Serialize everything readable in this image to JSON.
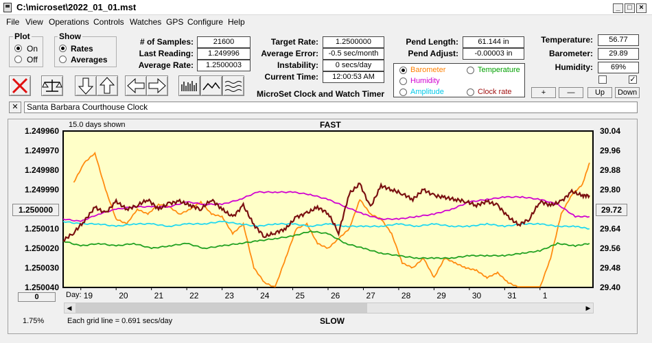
{
  "window": {
    "title": "C:\\microset\\2022_01_01.mst"
  },
  "menu": [
    "File",
    "View",
    "Operations",
    "Controls",
    "Watches",
    "GPS",
    "Configure",
    "Help"
  ],
  "plot_group": {
    "label": "Plot",
    "on": "On",
    "off": "Off",
    "selected": "On"
  },
  "show_group": {
    "label": "Show",
    "rates": "Rates",
    "averages": "Averages",
    "selected": "Rates"
  },
  "stats": {
    "samples_label": "# of Samples:",
    "samples": "21600",
    "last_reading_label": "Last Reading:",
    "last_reading": "1.249996",
    "average_rate_label": "Average Rate:",
    "average_rate": "1.2500003",
    "target_rate_label": "Target Rate:",
    "target_rate": "1.2500000",
    "average_error_label": "Average Error:",
    "average_error": "-0.5 sec/month",
    "instability_label": "Instability:",
    "instability": "0 secs/day",
    "current_time_label": "Current Time:",
    "current_time": "12:00:53 AM",
    "pend_length_label": "Pend Length:",
    "pend_length": "61.144 in",
    "pend_adjust_label": "Pend Adjust:",
    "pend_adjust": "-0.00003 in",
    "temperature_label": "Temperature:",
    "temperature": "56.77",
    "barometer_label": "Barometer:",
    "barometer": "29.89",
    "humidity_label": "Humidity:",
    "humidity": "69%"
  },
  "app_caption": "MicroSet Clock and Watch Timer",
  "aux_options": [
    {
      "label": "Barometer",
      "color": "#ff8000",
      "selected": true
    },
    {
      "label": "Temperature",
      "color": "#00a000",
      "selected": false
    },
    {
      "label": "Humidity",
      "color": "#d000d0",
      "selected": false
    },
    {
      "label": "Clock rate",
      "color": "#a01010",
      "selected": false
    },
    {
      "label": "Amplitude",
      "color": "#00c8e8",
      "selected": false
    }
  ],
  "scale_buttons": [
    "+",
    "—",
    "Up",
    "Down"
  ],
  "checkbox_right": "✓",
  "description": "Santa Barbara Courthouse Clock",
  "close_x": "✕",
  "chart_data": {
    "type": "line",
    "days_shown": "15.0 days shown",
    "top_label": "FAST",
    "bottom_label": "SLOW",
    "grid_note": "Each grid line = 0.691 secs/day",
    "zoom_pct": "1.75%",
    "left_ticks": [
      "1.249960",
      "1.249970",
      "1.249980",
      "1.249990",
      "1.250000",
      "1.250010",
      "1.250020",
      "1.250030",
      "1.250040"
    ],
    "right_ticks": [
      "30.04",
      "29.96",
      "29.88",
      "29.80",
      "29.72",
      "29.64",
      "29.56",
      "29.48",
      "29.40"
    ],
    "left_button": "1.250000",
    "right_button": "29.72",
    "bottom_left_button": "0",
    "x_prefix": "Day:",
    "x_ticks": [
      "19",
      "20",
      "21",
      "22",
      "23",
      "24",
      "25",
      "26",
      "27",
      "28",
      "29",
      "30",
      "31",
      "1"
    ],
    "y_range_left": [
      1.24996,
      1.25004
    ],
    "y_range_right": [
      29.4,
      30.04
    ],
    "series": [
      {
        "name": "Barometer",
        "color": "#ff8c10",
        "axis": "right",
        "x": [
          18.3,
          18.6,
          18.9,
          19.2,
          19.5,
          19.8,
          20.1,
          20.4,
          20.7,
          21.0,
          21.3,
          21.6,
          21.9,
          22.2,
          22.5,
          22.8,
          23.1,
          23.4,
          23.7,
          24.0,
          24.3,
          24.6,
          24.9,
          25.2,
          25.5,
          25.8,
          26.1,
          26.4,
          26.7,
          27.0,
          27.3,
          27.6,
          27.9,
          28.2,
          28.5,
          28.8,
          29.1,
          29.4,
          29.7,
          30.0,
          30.3,
          30.6,
          30.9,
          31.2,
          31.5,
          31.8,
          32.1,
          32.4,
          32.7,
          32.9
        ],
        "y": [
          29.83,
          29.91,
          29.95,
          29.8,
          29.68,
          29.66,
          29.72,
          29.7,
          29.74,
          29.73,
          29.7,
          29.72,
          29.75,
          29.7,
          29.69,
          29.62,
          29.66,
          29.48,
          29.42,
          29.4,
          29.52,
          29.64,
          29.66,
          29.58,
          29.56,
          29.6,
          29.64,
          29.76,
          29.7,
          29.68,
          29.62,
          29.5,
          29.48,
          29.52,
          29.44,
          29.52,
          29.5,
          29.48,
          29.47,
          29.44,
          29.46,
          29.42,
          29.4,
          29.38,
          29.4,
          29.52,
          29.7,
          29.78,
          29.82,
          29.91
        ]
      },
      {
        "name": "Humidity",
        "color": "#d000d0",
        "axis": "right",
        "x": [
          18.0,
          18.5,
          19.0,
          19.5,
          20.0,
          20.5,
          21.0,
          21.5,
          22.0,
          22.5,
          23.0,
          23.5,
          24.0,
          24.5,
          25.0,
          25.5,
          26.0,
          26.5,
          27.0,
          27.5,
          28.0,
          28.5,
          29.0,
          29.5,
          30.0,
          30.5,
          31.0,
          31.5,
          32.0,
          32.5,
          32.9
        ],
        "y": [
          29.68,
          29.67,
          29.7,
          29.72,
          29.73,
          29.73,
          29.73,
          29.75,
          29.74,
          29.74,
          29.76,
          29.79,
          29.79,
          29.79,
          29.78,
          29.76,
          29.73,
          29.7,
          29.68,
          29.68,
          29.69,
          29.7,
          29.72,
          29.75,
          29.76,
          29.77,
          29.77,
          29.76,
          29.74,
          29.69,
          29.69
        ]
      },
      {
        "name": "Amplitude",
        "color": "#20d8f0",
        "axis": "right",
        "x": [
          18.0,
          18.5,
          19.0,
          19.5,
          20.0,
          20.5,
          21.0,
          21.5,
          22.0,
          22.5,
          23.0,
          23.5,
          24.0,
          24.5,
          25.0,
          25.5,
          26.0,
          26.5,
          27.0,
          27.5,
          28.0,
          28.5,
          29.0,
          29.5,
          30.0,
          30.5,
          31.0,
          31.5,
          32.0,
          32.5,
          32.9
        ],
        "y": [
          29.67,
          29.66,
          29.66,
          29.65,
          29.66,
          29.66,
          29.65,
          29.66,
          29.66,
          29.67,
          29.66,
          29.65,
          29.66,
          29.66,
          29.65,
          29.66,
          29.65,
          29.65,
          29.65,
          29.66,
          29.65,
          29.66,
          29.65,
          29.65,
          29.66,
          29.65,
          29.66,
          29.66,
          29.65,
          29.65,
          29.64
        ]
      },
      {
        "name": "Temperature",
        "color": "#20a020",
        "axis": "right",
        "x": [
          18.0,
          18.5,
          19.0,
          19.5,
          20.0,
          20.5,
          21.0,
          21.5,
          22.0,
          22.5,
          23.0,
          23.5,
          24.0,
          24.5,
          25.0,
          25.5,
          26.0,
          26.5,
          27.0,
          27.5,
          28.0,
          28.5,
          29.0,
          29.5,
          30.0,
          30.5,
          31.0,
          31.5,
          32.0,
          32.5,
          32.9
        ],
        "y": [
          29.59,
          29.57,
          29.58,
          29.57,
          29.58,
          29.56,
          29.57,
          29.58,
          29.56,
          29.57,
          29.58,
          29.59,
          29.6,
          29.61,
          29.63,
          29.62,
          29.58,
          29.56,
          29.54,
          29.53,
          29.52,
          29.52,
          29.52,
          29.53,
          29.53,
          29.53,
          29.54,
          29.55,
          29.58,
          29.57,
          29.58
        ]
      },
      {
        "name": "Clock rate",
        "color": "#7a1010",
        "axis": "left",
        "x": [
          18.0,
          18.3,
          18.6,
          18.9,
          19.2,
          19.5,
          19.8,
          20.1,
          20.4,
          20.7,
          21.0,
          21.3,
          21.6,
          21.9,
          22.2,
          22.5,
          22.8,
          23.1,
          23.4,
          23.7,
          24.0,
          24.3,
          24.6,
          24.9,
          25.2,
          25.5,
          25.8,
          26.1,
          26.4,
          26.7,
          27.0,
          27.3,
          27.6,
          27.9,
          28.2,
          28.5,
          28.8,
          29.1,
          29.4,
          29.7,
          30.0,
          30.3,
          30.6,
          30.9,
          31.2,
          31.5,
          31.8,
          32.1,
          32.4,
          32.7,
          32.9
        ],
        "y": [
          1.250016,
          1.250012,
          1.250006,
          1.249999,
          1.250002,
          1.249996,
          1.25,
          1.249998,
          1.249995,
          1.25,
          1.249997,
          1.249996,
          1.249998,
          1.25,
          1.249995,
          1.25,
          1.250004,
          1.249998,
          1.250008,
          1.250014,
          1.250012,
          1.25001,
          1.250004,
          1.250002,
          1.249999,
          1.250002,
          1.250012,
          1.249992,
          1.249987,
          1.249999,
          1.249988,
          1.24999,
          1.249992,
          1.249995,
          1.24999,
          1.249993,
          1.249994,
          1.249995,
          1.249996,
          1.249998,
          1.249996,
          1.249998,
          1.250004,
          1.250008,
          1.250005,
          1.249996,
          1.249998,
          1.249996,
          1.249991,
          1.249993,
          1.249993
        ]
      }
    ]
  }
}
